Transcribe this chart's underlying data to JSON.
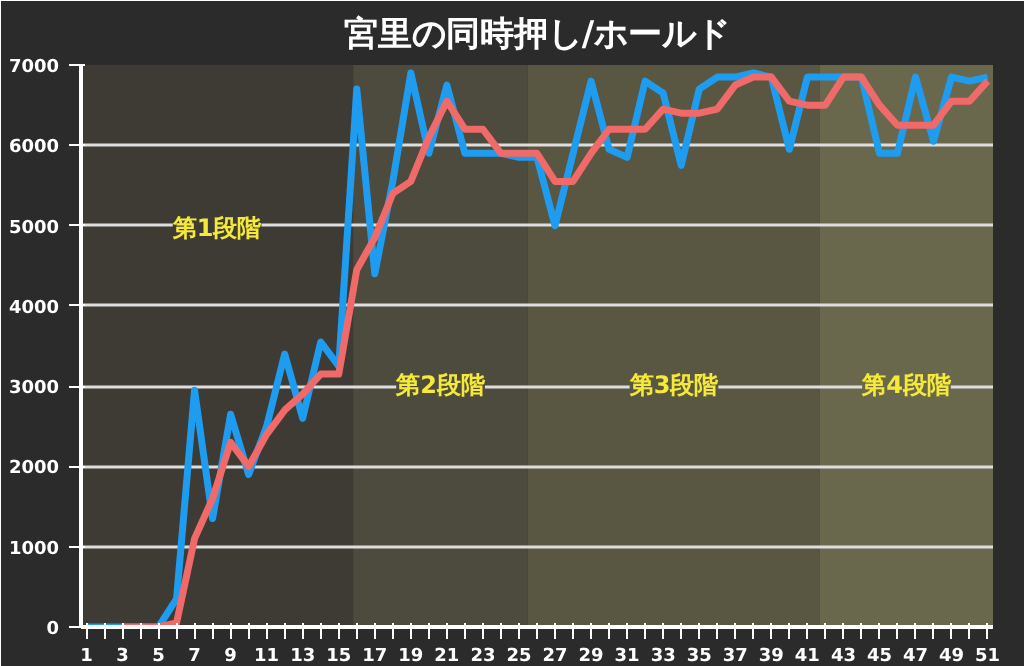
{
  "chart_data": {
    "type": "line",
    "title": "宮里の同時押し/ホールド",
    "x": [
      1,
      2,
      3,
      4,
      5,
      6,
      7,
      8,
      9,
      10,
      11,
      12,
      13,
      14,
      15,
      16,
      17,
      18,
      19,
      20,
      21,
      22,
      23,
      24,
      25,
      26,
      27,
      28,
      29,
      30,
      31,
      32,
      33,
      34,
      35,
      36,
      37,
      38,
      39,
      40,
      41,
      42,
      43,
      44,
      45,
      46,
      47,
      48,
      49,
      50,
      51
    ],
    "series": [
      {
        "color": "#1e9cf0",
        "values": [
          0,
          0,
          0,
          0,
          0,
          350,
          2950,
          1350,
          2650,
          1900,
          2500,
          3400,
          2600,
          3550,
          3250,
          6700,
          4400,
          5550,
          6900,
          5900,
          6750,
          5900,
          5900,
          5900,
          5850,
          5850,
          5000,
          5900,
          6800,
          5950,
          5850,
          6800,
          6650,
          5750,
          6700,
          6850,
          6850,
          6900,
          6850,
          5950,
          6850,
          6850,
          6850,
          6850,
          5900,
          5900,
          6850,
          6050,
          6850,
          6800,
          6850
        ]
      },
      {
        "color": "#f06a6a",
        "values": [
          null,
          null,
          0,
          0,
          0,
          50,
          1100,
          1600,
          2300,
          2000,
          2400,
          2700,
          2900,
          3150,
          3150,
          4450,
          4850,
          5400,
          5550,
          6100,
          6550,
          6200,
          6200,
          5900,
          5900,
          5900,
          5550,
          5550,
          5900,
          6200,
          6200,
          6200,
          6450,
          6400,
          6400,
          6450,
          6750,
          6850,
          6850,
          6550,
          6500,
          6500,
          6850,
          6850,
          6500,
          6250,
          6250,
          6250,
          6550,
          6550,
          6800
        ]
      }
    ],
    "xlim": [
      0.7,
      51.3
    ],
    "xticks": [
      1,
      {
        "value": 2,
        "label": null
      },
      3,
      {
        "value": 4,
        "label": null
      },
      5,
      {
        "value": 6,
        "label": null
      },
      7,
      {
        "value": 8,
        "label": null
      },
      9,
      {
        "value": 10,
        "label": null
      },
      11,
      {
        "value": 12,
        "label": null
      },
      13,
      {
        "value": 14,
        "label": null
      },
      15,
      {
        "value": 16,
        "label": null
      },
      17,
      {
        "value": 18,
        "label": null
      },
      19,
      {
        "value": 20,
        "label": null
      },
      21,
      {
        "value": 22,
        "label": null
      },
      23,
      {
        "value": 24,
        "label": null
      },
      25,
      {
        "value": 26,
        "label": null
      },
      27,
      {
        "value": 28,
        "label": null
      },
      29,
      {
        "value": 30,
        "label": null
      },
      31,
      {
        "value": 32,
        "label": null
      },
      33,
      {
        "value": 34,
        "label": null
      },
      35,
      {
        "value": 36,
        "label": null
      },
      37,
      {
        "value": 38,
        "label": null
      },
      39,
      {
        "value": 40,
        "label": null
      },
      41,
      {
        "value": 42,
        "label": null
      },
      43,
      {
        "value": 44,
        "label": null
      },
      45,
      {
        "value": 46,
        "label": null
      },
      47,
      {
        "value": 48,
        "label": null
      },
      49,
      {
        "value": 50,
        "label": null
      },
      51
    ],
    "ylim": [
      0,
      7000
    ],
    "yticks": [
      0,
      1000,
      2000,
      3000,
      4000,
      5000,
      6000,
      7000
    ],
    "grid": "y",
    "bands": [
      {
        "axis": "x",
        "from": 0.7,
        "to": 15.8,
        "label": "第1段階",
        "color": "#3d3b33"
      },
      {
        "axis": "x",
        "from": 15.8,
        "to": 25.5,
        "label": "第2段階",
        "color": "#4d4b3d"
      },
      {
        "axis": "x",
        "from": 25.5,
        "to": 41.7,
        "label": "第3段階",
        "color": "#595741"
      },
      {
        "axis": "x",
        "from": 41.7,
        "to": 51.3,
        "label": "第4段階",
        "color": "#6a684c"
      }
    ]
  }
}
